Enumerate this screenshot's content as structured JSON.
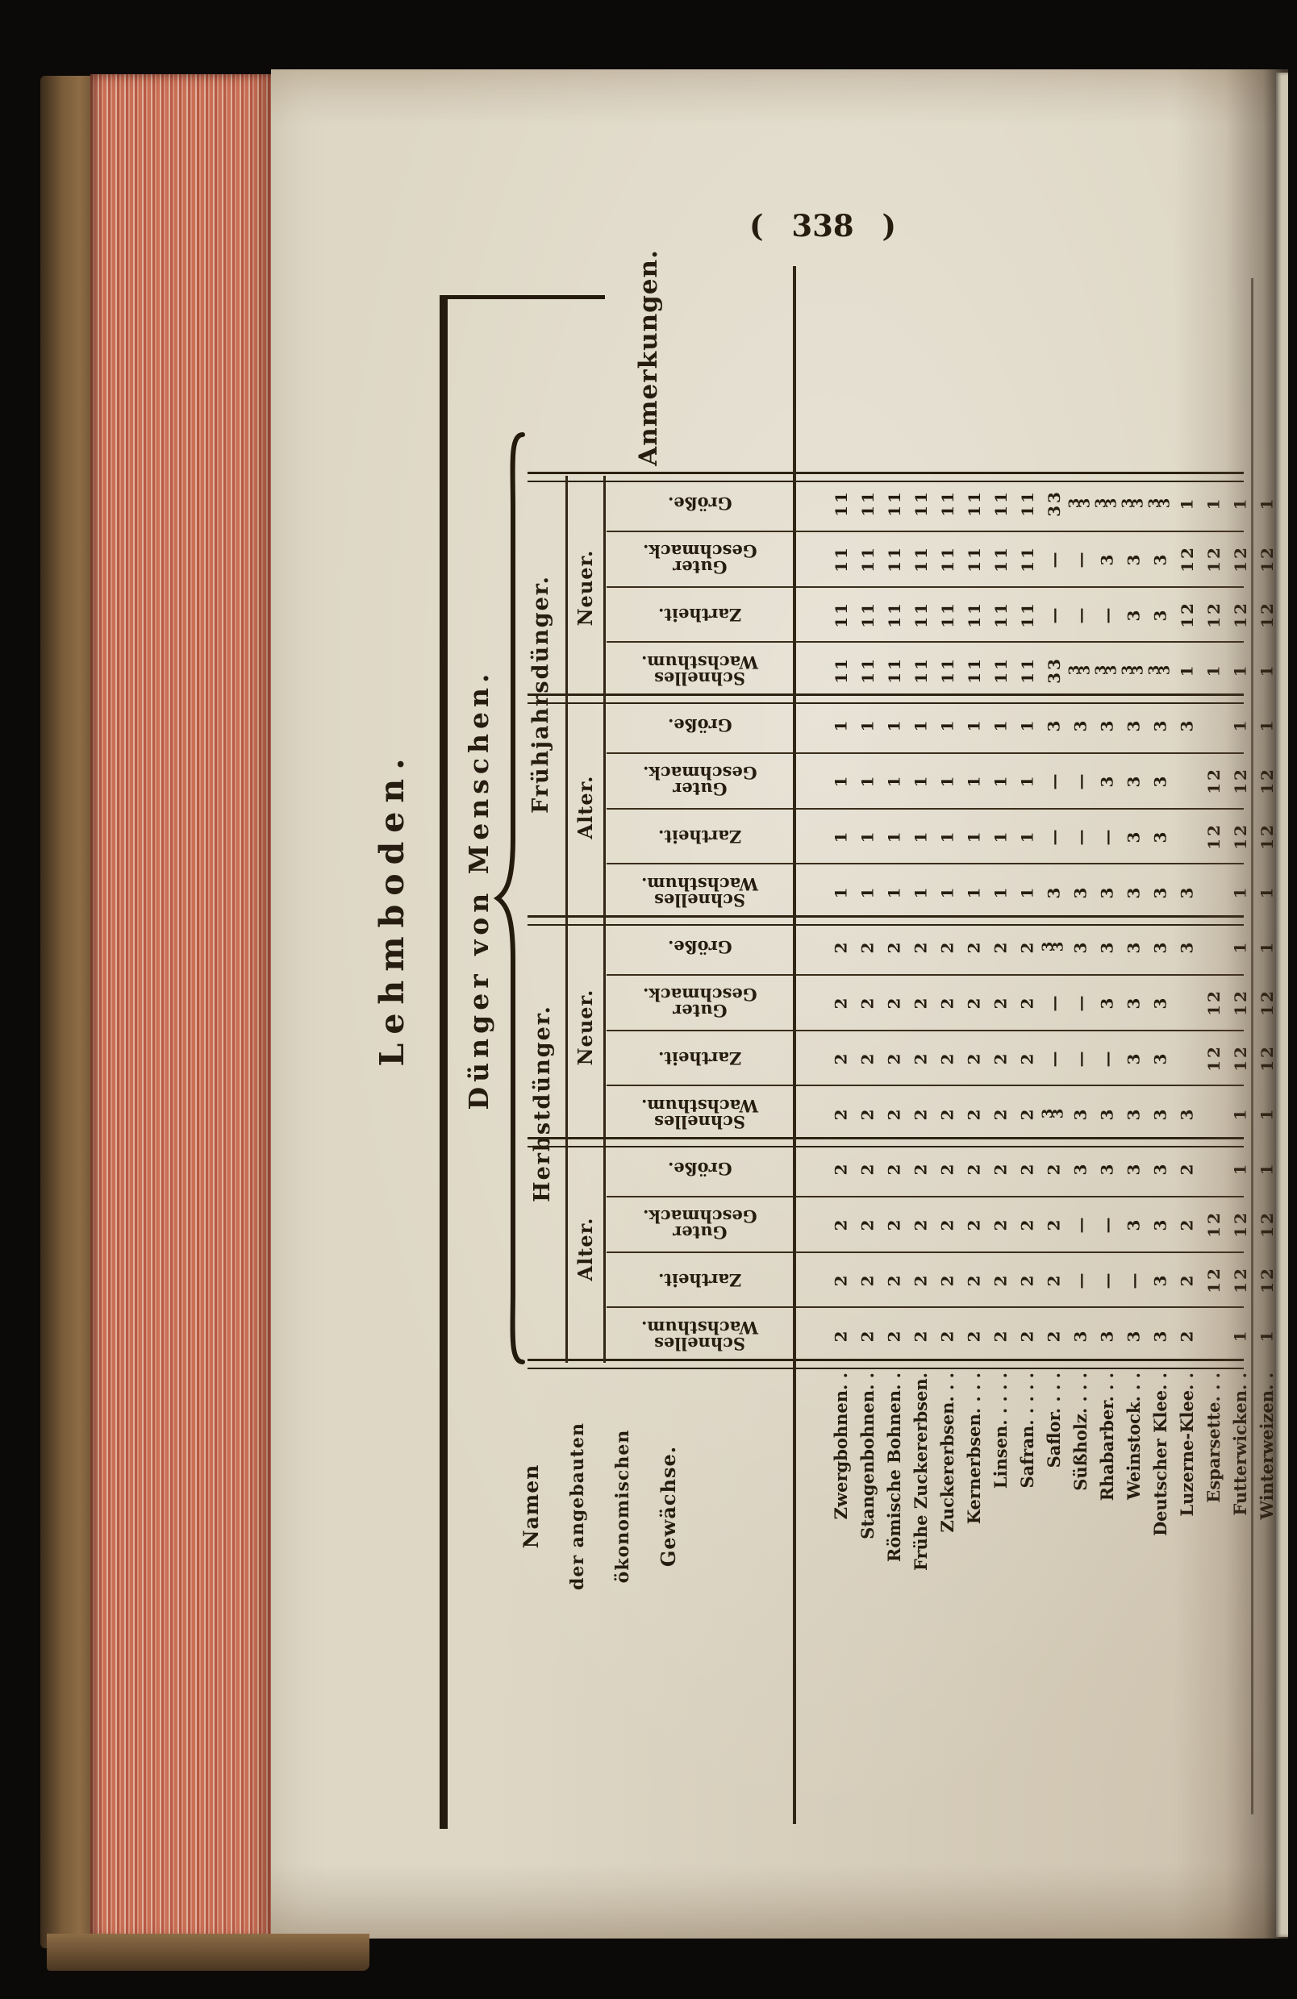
{
  "page": {
    "number_display": "( 338 )"
  },
  "table": {
    "title": "Lehmboden.",
    "row_group_title": "Dünger von Menschen.",
    "anmerkungen_label": "Anmerkungen.",
    "names_header_lines": [
      "Namen",
      "der angebauten",
      "ökonomischen",
      "Gewächse."
    ],
    "plants": [
      "Zwergbohnen. .",
      "Stangenbohnen. .",
      "Römische Bohnen. .",
      "Frühe Zuckererbsen.",
      "Zuckererbsen. .  .",
      "Kernerbsen. .  .  .",
      "Linsen. .  .  .  .",
      "Safran. .  .  .  .",
      "Saflor. .  .  .",
      "Süßholz. .  .  .",
      "Rhabarber. .  .",
      "Weinstock. .  .",
      "Deutscher Klee. .",
      "Luzerne-Klee. .",
      "Esparsette. .  .",
      "Futterwicken. .",
      "Winterweizen. ."
    ],
    "sections": [
      {
        "label": "Frühjahrsdünger.",
        "ages": [
          {
            "label": "Neuer.",
            "bands": [
              {
                "label": "Größe.",
                "label_lines": [
                  "Größe."
                ],
                "values": [
                  "11",
                  "11",
                  "11",
                  "11",
                  "11",
                  "11",
                  "11",
                  "11",
                  "33",
                  "3/3",
                  "3/3",
                  "3/3",
                  "3/3",
                  "1",
                  "1",
                  "1",
                  "1"
                ]
              },
              {
                "label": "Guter Geschmack.",
                "label_lines": [
                  "Guter",
                  "Geschmack."
                ],
                "values": [
                  "11",
                  "11",
                  "11",
                  "11",
                  "11",
                  "11",
                  "11",
                  "11",
                  "—",
                  "—",
                  "3",
                  "3",
                  "3",
                  "12",
                  "12",
                  "12",
                  "12"
                ]
              },
              {
                "label": "Zartheit.",
                "label_lines": [
                  "Zartheit."
                ],
                "values": [
                  "11",
                  "11",
                  "11",
                  "11",
                  "11",
                  "11",
                  "11",
                  "11",
                  "—",
                  "—",
                  "—",
                  "3",
                  "3",
                  "12",
                  "12",
                  "12",
                  "12"
                ]
              },
              {
                "label": "Schnelles Wachsthum.",
                "label_lines": [
                  "Schnelles",
                  "Wachsthum."
                ],
                "values": [
                  "11",
                  "11",
                  "11",
                  "11",
                  "11",
                  "11",
                  "11",
                  "11",
                  "33",
                  "3/3",
                  "3/3",
                  "3/3",
                  "3/3",
                  "1",
                  "1",
                  "1",
                  "1"
                ]
              }
            ]
          },
          {
            "label": "Alter.",
            "bands": [
              {
                "label": "Größe.",
                "label_lines": [
                  "Größe."
                ],
                "values": [
                  "1",
                  "1",
                  "1",
                  "1",
                  "1",
                  "1",
                  "1",
                  "1",
                  "3",
                  "3",
                  "3",
                  "3",
                  "3",
                  "3",
                  "",
                  "1",
                  "1"
                ]
              },
              {
                "label": "Guter Geschmack.",
                "label_lines": [
                  "Guter",
                  "Geschmack."
                ],
                "values": [
                  "1",
                  "1",
                  "1",
                  "1",
                  "1",
                  "1",
                  "1",
                  "1",
                  "—",
                  "—",
                  "3",
                  "3",
                  "3",
                  "",
                  "12",
                  "12",
                  "12"
                ]
              },
              {
                "label": "Zartheit.",
                "label_lines": [
                  "Zartheit."
                ],
                "values": [
                  "1",
                  "1",
                  "1",
                  "1",
                  "1",
                  "1",
                  "1",
                  "1",
                  "—",
                  "—",
                  "—",
                  "3",
                  "3",
                  "",
                  "12",
                  "12",
                  "12"
                ]
              },
              {
                "label": "Schnelles Wachsthum.",
                "label_lines": [
                  "Schnelles",
                  "Wachsthum."
                ],
                "values": [
                  "1",
                  "1",
                  "1",
                  "1",
                  "1",
                  "1",
                  "1",
                  "1",
                  "3",
                  "3",
                  "3",
                  "3",
                  "3",
                  "3",
                  "",
                  "1",
                  "1"
                ]
              }
            ]
          }
        ]
      },
      {
        "label": "Herbstdünger.",
        "ages": [
          {
            "label": "Neuer.",
            "bands": [
              {
                "label": "Größe.",
                "label_lines": [
                  "Größe."
                ],
                "values": [
                  "2",
                  "2",
                  "2",
                  "2",
                  "2",
                  "2",
                  "2",
                  "2",
                  "3/3",
                  "3",
                  "3",
                  "3",
                  "3",
                  "3",
                  "",
                  "1",
                  "1"
                ]
              },
              {
                "label": "Guter Geschmack.",
                "label_lines": [
                  "Guter",
                  "Geschmack."
                ],
                "values": [
                  "2",
                  "2",
                  "2",
                  "2",
                  "2",
                  "2",
                  "2",
                  "2",
                  "—",
                  "—",
                  "3",
                  "3",
                  "3",
                  "",
                  "12",
                  "12",
                  "12"
                ]
              },
              {
                "label": "Zartheit.",
                "label_lines": [
                  "Zartheit."
                ],
                "values": [
                  "2",
                  "2",
                  "2",
                  "2",
                  "2",
                  "2",
                  "2",
                  "2",
                  "—",
                  "—",
                  "—",
                  "3",
                  "3",
                  "",
                  "12",
                  "12",
                  "12"
                ]
              },
              {
                "label": "Schnelles Wachsthum.",
                "label_lines": [
                  "Schnelles",
                  "Wachsthum."
                ],
                "values": [
                  "2",
                  "2",
                  "2",
                  "2",
                  "2",
                  "2",
                  "2",
                  "2",
                  "3/3",
                  "3",
                  "3",
                  "3",
                  "3",
                  "3",
                  "",
                  "1",
                  "1"
                ]
              }
            ]
          },
          {
            "label": "Alter.",
            "bands": [
              {
                "label": "Größe.",
                "label_lines": [
                  "Größe."
                ],
                "values": [
                  "2",
                  "2",
                  "2",
                  "2",
                  "2",
                  "2",
                  "2",
                  "2",
                  "2",
                  "3",
                  "3",
                  "3",
                  "3",
                  "2",
                  "",
                  "1",
                  "1"
                ]
              },
              {
                "label": "Guter Geschmack.",
                "label_lines": [
                  "Guter",
                  "Geschmack."
                ],
                "values": [
                  "2",
                  "2",
                  "2",
                  "2",
                  "2",
                  "2",
                  "2",
                  "2",
                  "2",
                  "—",
                  "—",
                  "3",
                  "3",
                  "2",
                  "12",
                  "12",
                  "12"
                ]
              },
              {
                "label": "Zartheit.",
                "label_lines": [
                  "Zartheit."
                ],
                "values": [
                  "2",
                  "2",
                  "2",
                  "2",
                  "2",
                  "2",
                  "2",
                  "2",
                  "2",
                  "—",
                  "—",
                  "—",
                  "3",
                  "2",
                  "12",
                  "12",
                  "12"
                ]
              },
              {
                "label": "Schnelles Wachsthum.",
                "label_lines": [
                  "Schnelles",
                  "Wachsthum."
                ],
                "values": [
                  "2",
                  "2",
                  "2",
                  "2",
                  "2",
                  "2",
                  "2",
                  "2",
                  "2",
                  "3",
                  "3",
                  "3",
                  "3",
                  "2",
                  "",
                  "1",
                  "1"
                ]
              }
            ]
          }
        ]
      }
    ],
    "colors": {
      "ink": "#261c10",
      "paper": "#ded7c5",
      "fore_edge_red": "#c96f55"
    }
  }
}
